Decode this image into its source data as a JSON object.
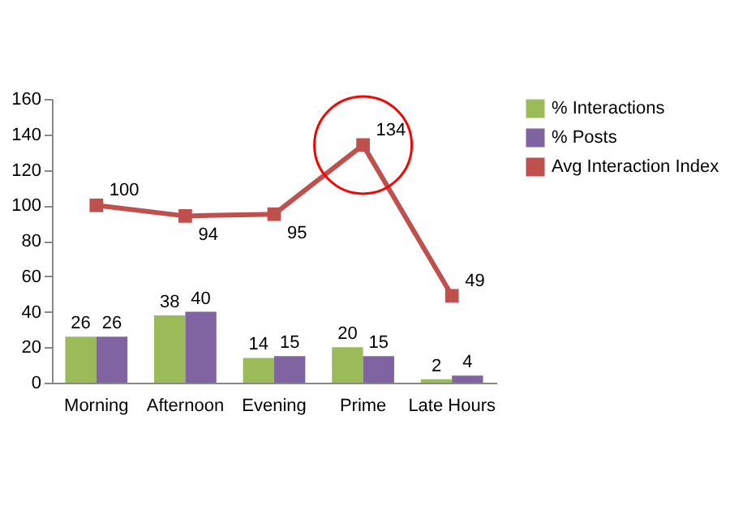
{
  "chart_data": {
    "type": "bar",
    "categories": [
      "Morning",
      "Afternoon",
      "Evening",
      "Prime",
      "Late Hours"
    ],
    "series": [
      {
        "name": "% Interactions",
        "color": "#9bbb59",
        "values": [
          26,
          38,
          14,
          20,
          2
        ]
      },
      {
        "name": "% Posts",
        "color": "#8064a2",
        "values": [
          26,
          40,
          15,
          15,
          4
        ]
      },
      {
        "name": "Avg Interaction Index",
        "color": "#c0504d",
        "type": "line",
        "marker": "square",
        "values": [
          100,
          94,
          95,
          134,
          49
        ]
      }
    ],
    "ylim": [
      0,
      160
    ],
    "yticks": [
      0,
      20,
      40,
      60,
      80,
      100,
      120,
      140,
      160
    ],
    "data_labels": true,
    "legend": "right"
  }
}
